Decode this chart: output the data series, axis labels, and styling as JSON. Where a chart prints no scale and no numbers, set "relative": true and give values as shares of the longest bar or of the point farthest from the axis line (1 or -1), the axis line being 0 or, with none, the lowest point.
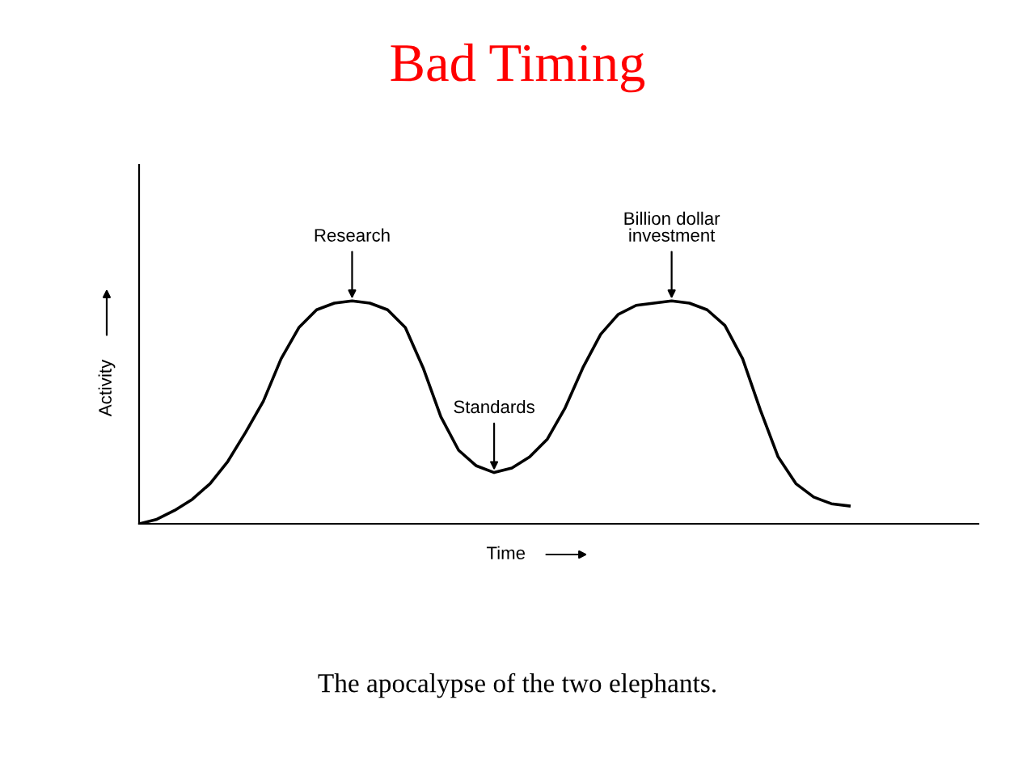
{
  "chart_data": {
    "type": "line",
    "title": "Bad Timing",
    "xlabel": "Time",
    "ylabel": "Activity",
    "relative": true,
    "categories": [
      null,
      null,
      null,
      null,
      null,
      null,
      null,
      null,
      null,
      null,
      null,
      null,
      null,
      null,
      null,
      null,
      null,
      null,
      null,
      null,
      null,
      null,
      null,
      null,
      null,
      null,
      null,
      null,
      null,
      null,
      null,
      null,
      null,
      null,
      null,
      null,
      null,
      null,
      null,
      null,
      null
    ],
    "series": [
      {
        "color": "#000000",
        "values": [
          0,
          0.02,
          0.06,
          0.11,
          0.18,
          0.28,
          0.41,
          0.55,
          0.74,
          0.88,
          0.96,
          0.99,
          1.0,
          0.99,
          0.96,
          0.88,
          0.7,
          0.48,
          0.33,
          0.26,
          0.23,
          0.25,
          0.3,
          0.38,
          0.52,
          0.7,
          0.85,
          0.94,
          0.98,
          0.99,
          1.0,
          0.99,
          0.96,
          0.89,
          0.74,
          0.51,
          0.3,
          0.18,
          0.12,
          0.09,
          0.08
        ]
      }
    ],
    "annotations": [
      "Research",
      "Standards",
      "Billion dollar\ninvestment",
      "The apocalypse of the two elephants."
    ],
    "legend": false,
    "marker": "none",
    "line_style": "solid"
  }
}
